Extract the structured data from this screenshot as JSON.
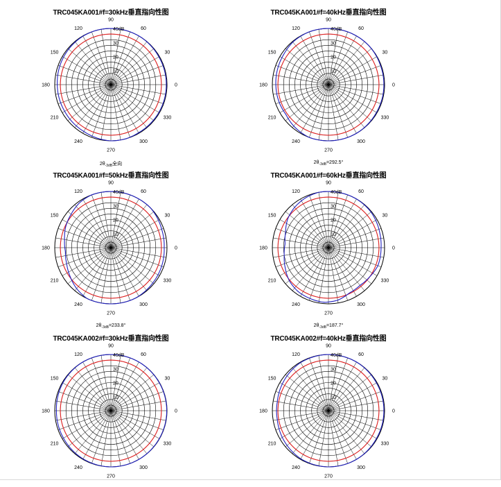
{
  "chart_data": [
    {
      "type": "polar",
      "title": "TRC045KA001#f=30kHz垂直指向性图",
      "angle_ticks": [
        "0",
        "30",
        "60",
        "90",
        "120",
        "150",
        "180",
        "210",
        "240",
        "270",
        "300",
        "330"
      ],
      "radial_ticks": [
        "10",
        "20",
        "30",
        "40dB"
      ],
      "radial_range_db": [
        0,
        40
      ],
      "caption": {
        "prefix": "2θ",
        "sub": "-3dB",
        "text": "全向"
      },
      "series": [
        {
          "name": "red",
          "color": "#e02020",
          "db_by_angle_deg": [
            [
              0,
              36
            ],
            [
              30,
              36
            ],
            [
              60,
              36
            ],
            [
              90,
              36
            ],
            [
              120,
              36
            ],
            [
              150,
              36
            ],
            [
              180,
              36
            ],
            [
              210,
              36
            ],
            [
              240,
              36
            ],
            [
              270,
              36
            ],
            [
              300,
              36
            ],
            [
              330,
              36
            ]
          ]
        },
        {
          "name": "blue",
          "color": "#2020c0",
          "db_by_angle_deg": [
            [
              0,
              39.5
            ],
            [
              30,
              39.5
            ],
            [
              60,
              40
            ],
            [
              75,
              40
            ],
            [
              90,
              40
            ],
            [
              105,
              40
            ],
            [
              120,
              39.8
            ],
            [
              150,
              39
            ],
            [
              180,
              38.2
            ],
            [
              210,
              38
            ],
            [
              240,
              38.5
            ],
            [
              260,
              39.5
            ],
            [
              270,
              40
            ],
            [
              285,
              40
            ],
            [
              300,
              39.5
            ],
            [
              330,
              39.5
            ]
          ]
        }
      ]
    },
    {
      "type": "polar",
      "title": "TRC045KA001#f=40kHz垂直指向性图",
      "angle_ticks": [
        "0",
        "30",
        "60",
        "90",
        "120",
        "150",
        "180",
        "210",
        "240",
        "270",
        "300",
        "330"
      ],
      "radial_ticks": [
        "10",
        "20",
        "30",
        "40dB"
      ],
      "radial_range_db": [
        0,
        40
      ],
      "caption": {
        "prefix": "2θ",
        "sub": "-3dB",
        "text": "=292.5°"
      },
      "series": [
        {
          "name": "red",
          "color": "#e02020",
          "db_by_angle_deg": [
            [
              0,
              36
            ],
            [
              30,
              36
            ],
            [
              60,
              36
            ],
            [
              90,
              36
            ],
            [
              120,
              36
            ],
            [
              150,
              36
            ],
            [
              180,
              36
            ],
            [
              210,
              36
            ],
            [
              240,
              36
            ],
            [
              270,
              36
            ],
            [
              300,
              36
            ],
            [
              330,
              36
            ]
          ]
        },
        {
          "name": "blue",
          "color": "#2020c0",
          "db_by_angle_deg": [
            [
              0,
              39.5
            ],
            [
              20,
              39.5
            ],
            [
              45,
              40
            ],
            [
              70,
              40
            ],
            [
              90,
              40
            ],
            [
              110,
              40
            ],
            [
              130,
              39.5
            ],
            [
              145,
              38.5
            ],
            [
              160,
              38
            ],
            [
              180,
              37.5
            ],
            [
              200,
              37.3
            ],
            [
              215,
              37
            ],
            [
              230,
              38.5
            ],
            [
              250,
              40
            ],
            [
              270,
              40
            ],
            [
              300,
              40
            ],
            [
              330,
              39.5
            ]
          ]
        }
      ]
    },
    {
      "type": "polar",
      "title": "TRC045KA001#f=50kHz垂直指向性图",
      "angle_ticks": [
        "0",
        "30",
        "60",
        "90",
        "120",
        "150",
        "180",
        "210",
        "240",
        "270",
        "300",
        "330"
      ],
      "radial_ticks": [
        "10",
        "20",
        "30",
        "40dB"
      ],
      "radial_range_db": [
        0,
        40
      ],
      "caption": {
        "prefix": "2θ",
        "sub": "-3dB",
        "text": "=233.8°"
      },
      "series": [
        {
          "name": "red",
          "color": "#e02020",
          "db_by_angle_deg": [
            [
              0,
              36
            ],
            [
              30,
              36
            ],
            [
              60,
              36
            ],
            [
              90,
              36
            ],
            [
              120,
              36
            ],
            [
              150,
              36
            ],
            [
              180,
              36
            ],
            [
              210,
              36
            ],
            [
              240,
              36
            ],
            [
              270,
              36
            ],
            [
              300,
              36
            ],
            [
              330,
              36
            ]
          ]
        },
        {
          "name": "blue",
          "color": "#2020c0",
          "db_by_angle_deg": [
            [
              0,
              38
            ],
            [
              20,
              38.5
            ],
            [
              45,
              40
            ],
            [
              70,
              40
            ],
            [
              90,
              40
            ],
            [
              110,
              40
            ],
            [
              125,
              39
            ],
            [
              140,
              37
            ],
            [
              155,
              35.5
            ],
            [
              170,
              33.5
            ],
            [
              185,
              32.5
            ],
            [
              200,
              33.5
            ],
            [
              215,
              35.5
            ],
            [
              230,
              38
            ],
            [
              245,
              40
            ],
            [
              270,
              40
            ],
            [
              295,
              40
            ],
            [
              320,
              39
            ],
            [
              340,
              38.5
            ]
          ]
        }
      ]
    },
    {
      "type": "polar",
      "title": "TRC045KA001#f=60kHz垂直指向性图",
      "angle_ticks": [
        "0",
        "30",
        "60",
        "90",
        "120",
        "150",
        "180",
        "210",
        "240",
        "270",
        "300",
        "330"
      ],
      "radial_ticks": [
        "10",
        "20",
        "30",
        "40dB"
      ],
      "radial_range_db": [
        0,
        40
      ],
      "caption": {
        "prefix": "2θ",
        "sub": "-3dB",
        "text": "=187.7°"
      },
      "series": [
        {
          "name": "red",
          "color": "#e02020",
          "db_by_angle_deg": [
            [
              0,
              36
            ],
            [
              30,
              36
            ],
            [
              60,
              36
            ],
            [
              90,
              36
            ],
            [
              120,
              36
            ],
            [
              150,
              36
            ],
            [
              180,
              36
            ],
            [
              210,
              36
            ],
            [
              240,
              36
            ],
            [
              270,
              36
            ],
            [
              300,
              36
            ],
            [
              330,
              36
            ]
          ]
        },
        {
          "name": "blue",
          "color": "#2020c0",
          "db_by_angle_deg": [
            [
              0,
              37.5
            ],
            [
              15,
              38
            ],
            [
              40,
              39.5
            ],
            [
              60,
              40
            ],
            [
              80,
              40
            ],
            [
              100,
              40
            ],
            [
              115,
              39
            ],
            [
              130,
              37.5
            ],
            [
              145,
              35.5
            ],
            [
              160,
              32.5
            ],
            [
              175,
              31
            ],
            [
              190,
              32
            ],
            [
              205,
              34
            ],
            [
              220,
              36.5
            ],
            [
              235,
              38
            ],
            [
              250,
              38.5
            ],
            [
              265,
              39
            ],
            [
              280,
              38
            ],
            [
              295,
              35.5
            ],
            [
              310,
              35
            ],
            [
              325,
              36
            ],
            [
              340,
              37.5
            ]
          ]
        }
      ]
    },
    {
      "type": "polar",
      "title": "TRC045KA002#f=30kHz垂直指向性图",
      "angle_ticks": [
        "0",
        "30",
        "60",
        "90",
        "120",
        "150",
        "180",
        "210",
        "240",
        "270",
        "300",
        "330"
      ],
      "radial_ticks": [
        "10",
        "20",
        "30",
        "40dB"
      ],
      "radial_range_db": [
        0,
        40
      ],
      "caption": null,
      "series": [
        {
          "name": "red",
          "color": "#e02020",
          "db_by_angle_deg": [
            [
              0,
              36
            ],
            [
              30,
              36
            ],
            [
              60,
              36
            ],
            [
              90,
              36
            ],
            [
              120,
              36
            ],
            [
              150,
              36
            ],
            [
              180,
              36
            ],
            [
              210,
              36
            ],
            [
              240,
              36
            ],
            [
              270,
              36
            ],
            [
              300,
              36
            ],
            [
              330,
              36
            ]
          ]
        },
        {
          "name": "blue",
          "color": "#2020c0",
          "db_by_angle_deg": [
            [
              0,
              39.8
            ],
            [
              30,
              39.8
            ],
            [
              60,
              40
            ],
            [
              90,
              40
            ],
            [
              120,
              40
            ],
            [
              150,
              39.5
            ],
            [
              180,
              38.8
            ],
            [
              210,
              39
            ],
            [
              240,
              39.6
            ],
            [
              270,
              40
            ],
            [
              300,
              40
            ],
            [
              330,
              39.8
            ]
          ]
        }
      ]
    },
    {
      "type": "polar",
      "title": "TRC045KA002#f=40kHz垂直指向性图",
      "angle_ticks": [
        "0",
        "30",
        "60",
        "90",
        "120",
        "150",
        "180",
        "210",
        "240",
        "270",
        "300",
        "330"
      ],
      "radial_ticks": [
        "10",
        "20",
        "30",
        "40dB"
      ],
      "radial_range_db": [
        0,
        40
      ],
      "caption": null,
      "series": [
        {
          "name": "red",
          "color": "#e02020",
          "db_by_angle_deg": [
            [
              0,
              36
            ],
            [
              30,
              36
            ],
            [
              60,
              36
            ],
            [
              90,
              36
            ],
            [
              120,
              36
            ],
            [
              150,
              36
            ],
            [
              180,
              36
            ],
            [
              210,
              36
            ],
            [
              240,
              36
            ],
            [
              270,
              36
            ],
            [
              300,
              36
            ],
            [
              330,
              36
            ]
          ]
        },
        {
          "name": "blue",
          "color": "#2020c0",
          "db_by_angle_deg": [
            [
              0,
              39.5
            ],
            [
              30,
              39.5
            ],
            [
              60,
              40
            ],
            [
              90,
              40
            ],
            [
              120,
              39.6
            ],
            [
              150,
              38
            ],
            [
              170,
              37
            ],
            [
              190,
              37
            ],
            [
              210,
              38
            ],
            [
              240,
              39.5
            ],
            [
              270,
              40
            ],
            [
              300,
              40
            ],
            [
              330,
              39.5
            ]
          ]
        }
      ]
    }
  ]
}
